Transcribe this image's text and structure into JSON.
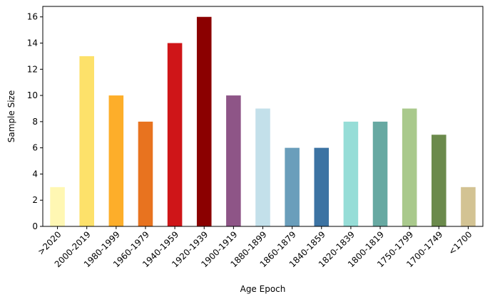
{
  "chart_data": {
    "type": "bar",
    "title": "",
    "xlabel": "Age Epoch",
    "ylabel": "Sample Size",
    "ylim": [
      0,
      16.8
    ],
    "yticks": [
      0,
      2,
      4,
      6,
      8,
      10,
      12,
      14,
      16
    ],
    "grid": false,
    "legend": "none",
    "categories": [
      ">2020",
      "2000-2019",
      "1980-1999",
      "1960-1979",
      "1940-1959",
      "1920-1939",
      "1900-1919",
      "1880-1899",
      "1860-1879",
      "1840-1859",
      "1820-1839",
      "1800-1819",
      "1750-1799",
      "1700-1749",
      "<1700"
    ],
    "values": [
      3,
      13,
      10,
      8,
      14,
      16,
      10,
      9,
      6,
      6,
      8,
      8,
      9,
      7,
      3
    ],
    "colors": [
      "#fff7b3",
      "#fde16a",
      "#fdae2a",
      "#e8731f",
      "#cf1518",
      "#8b0000",
      "#8e5587",
      "#c3e0ea",
      "#6a9ebb",
      "#3c73a3",
      "#96ddd7",
      "#67a9a2",
      "#a9c98c",
      "#6b8a4c",
      "#d3c393"
    ]
  }
}
